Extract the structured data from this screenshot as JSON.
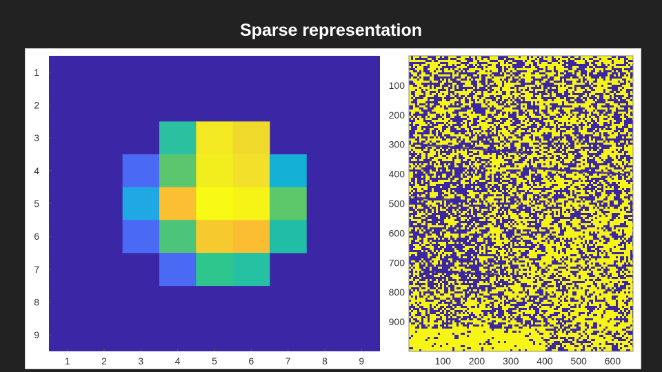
{
  "slide": {
    "title": "Sparse representation"
  },
  "chart_data": [
    {
      "type": "heatmap",
      "title": "",
      "xlabel": "",
      "ylabel": "",
      "x_ticks": [
        1,
        2,
        3,
        4,
        5,
        6,
        7,
        8,
        9
      ],
      "y_ticks": [
        1,
        2,
        3,
        4,
        5,
        6,
        7,
        8,
        9
      ],
      "xlim": [
        0.5,
        9.5
      ],
      "ylim": [
        0.5,
        9.5
      ],
      "colormap": "parula",
      "background_color": "#3b27a5",
      "cells": [
        {
          "x": 4,
          "y": 3,
          "color": "#2bc0a0"
        },
        {
          "x": 5,
          "y": 3,
          "color": "#f3e821"
        },
        {
          "x": 6,
          "y": 3,
          "color": "#efda2b"
        },
        {
          "x": 3,
          "y": 4,
          "color": "#4a6af5"
        },
        {
          "x": 4,
          "y": 4,
          "color": "#5cc66e"
        },
        {
          "x": 5,
          "y": 4,
          "color": "#f2ee1e"
        },
        {
          "x": 6,
          "y": 4,
          "color": "#f2e02a"
        },
        {
          "x": 7,
          "y": 4,
          "color": "#14b0d6"
        },
        {
          "x": 3,
          "y": 5,
          "color": "#1fa8e3"
        },
        {
          "x": 4,
          "y": 5,
          "color": "#fabf32"
        },
        {
          "x": 5,
          "y": 5,
          "color": "#f8f914"
        },
        {
          "x": 6,
          "y": 5,
          "color": "#f5f416"
        },
        {
          "x": 7,
          "y": 5,
          "color": "#5cc86a"
        },
        {
          "x": 3,
          "y": 6,
          "color": "#4a6af5"
        },
        {
          "x": 4,
          "y": 6,
          "color": "#4cc47a"
        },
        {
          "x": 5,
          "y": 6,
          "color": "#f6ca2e"
        },
        {
          "x": 6,
          "y": 6,
          "color": "#fbbe33"
        },
        {
          "x": 7,
          "y": 6,
          "color": "#22bda6"
        },
        {
          "x": 4,
          "y": 7,
          "color": "#4a6af5"
        },
        {
          "x": 5,
          "y": 7,
          "color": "#2ec68c"
        },
        {
          "x": 6,
          "y": 7,
          "color": "#26c0a2"
        }
      ]
    },
    {
      "type": "heatmap",
      "title": "",
      "xlabel": "",
      "ylabel": "",
      "x_ticks": [
        100,
        200,
        300,
        400,
        500,
        600
      ],
      "y_ticks": [
        100,
        200,
        300,
        400,
        500,
        600,
        700,
        800,
        900
      ],
      "xlim": [
        0,
        660
      ],
      "ylim": [
        0,
        1000
      ],
      "colormap": "binary",
      "background_color": "#3b27a5",
      "foreground_color": "#f7f516",
      "pattern": "sparse binary mask (dense noisy pixels)"
    }
  ]
}
